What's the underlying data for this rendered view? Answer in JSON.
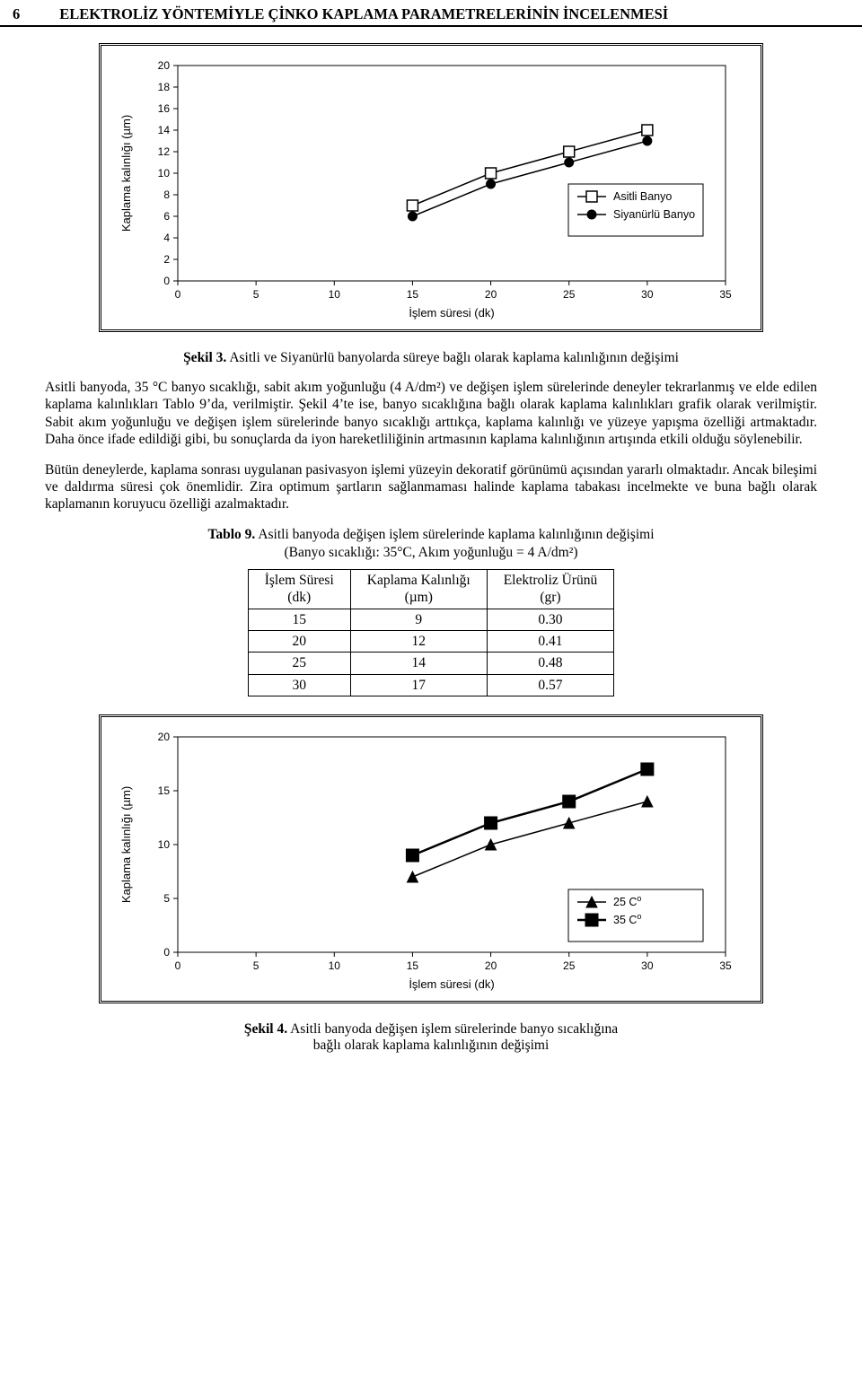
{
  "header": {
    "page_number": "6",
    "title": "ELEKTROLİZ YÖNTEMİYLE ÇİNKO KAPLAMA PARAMETRELERİNİN İNCELENMESİ"
  },
  "chart1": {
    "type": "line",
    "xlabel": "İşlem süresi (dk)",
    "ylabel": "Kaplama kalınlığı (µm)",
    "xlim": [
      0,
      35
    ],
    "xtick_step": 5,
    "ylim": [
      0,
      20
    ],
    "ytick_step": 2,
    "background_color": "#ffffff",
    "grid_color": "#000000",
    "axis_fontsize": 13,
    "tick_fontsize": 12,
    "series": [
      {
        "name": "Asitli Banyo",
        "marker": "square-open",
        "color": "#000000",
        "line_width": 1.5,
        "marker_size": 6,
        "x": [
          15,
          20,
          25,
          30
        ],
        "y": [
          7,
          10,
          12,
          14
        ]
      },
      {
        "name": "Siyanürlü Banyo",
        "marker": "circle",
        "color": "#000000",
        "line_width": 1.5,
        "marker_size": 5,
        "x": [
          15,
          20,
          25,
          30
        ],
        "y": [
          6,
          9,
          11,
          13
        ]
      }
    ],
    "legend": {
      "position": "inside-right-mid"
    }
  },
  "caption1_label": "Şekil 3.",
  "caption1_text": " Asitli ve Siyanürlü banyolarda süreye bağlı olarak kaplama kalınlığının değişimi",
  "para1": "Asitli banyoda, 35 °C banyo sıcaklığı, sabit akım yoğunluğu (4 A/dm²) ve değişen işlem sürelerinde deneyler tekrarlanmış ve elde edilen kaplama kalınlıkları Tablo 9’da, verilmiştir. Şekil 4’te ise, banyo sıcaklığına bağlı olarak kaplama kalınlıkları grafik olarak verilmiştir. Sabit akım yoğunluğu ve değişen işlem sürelerinde banyo sıcaklığı arttıkça, kaplama kalınlığı ve yüzeye yapışma özelliği artmaktadır. Daha önce ifade edildiği gibi, bu sonuçlarda da iyon hareketliliğinin artmasının kaplama kalınlığının artışında etkili olduğu söylenebilir.",
  "para2": "Bütün deneylerde, kaplama sonrası uygulanan pasivasyon işlemi yüzeyin dekoratif görünümü açısından yararlı olmaktadır. Ancak bileşimi ve daldırma süresi çok önemlidir. Zira optimum şartların sağlanmaması halinde kaplama tabakası incelmekte ve buna bağlı olarak kaplamanın koruyucu özelliği azalmaktadır.",
  "table9": {
    "caption_label": "Tablo 9.",
    "caption_line1": " Asitli banyoda değişen işlem sürelerinde kaplama kalınlığının değişimi",
    "caption_line2": "(Banyo sıcaklığı: 35°C, Akım yoğunluğu = 4 A/dm²)",
    "columns": [
      {
        "line1": "İşlem Süresi",
        "line2": "(dk)"
      },
      {
        "line1": "Kaplama Kalınlığı",
        "line2": "(µm)"
      },
      {
        "line1": "Elektroliz Ürünü",
        "line2": "(gr)"
      }
    ],
    "rows": [
      [
        "15",
        "9",
        "0.30"
      ],
      [
        "20",
        "12",
        "0.41"
      ],
      [
        "25",
        "14",
        "0.48"
      ],
      [
        "30",
        "17",
        "0.57"
      ]
    ]
  },
  "chart2": {
    "type": "line",
    "xlabel": "İşlem süresi (dk)",
    "ylabel": "Kaplama kalınlığı (µm)",
    "xlim": [
      0,
      35
    ],
    "xtick_step": 5,
    "ylim": [
      0,
      20
    ],
    "ytick_step": 5,
    "background_color": "#ffffff",
    "grid_color": "#000000",
    "axis_fontsize": 13,
    "tick_fontsize": 12,
    "series": [
      {
        "name": "25 C",
        "superscript": "o",
        "marker": "triangle",
        "color": "#000000",
        "line_width": 1.5,
        "marker_size": 6,
        "x": [
          15,
          20,
          25,
          30
        ],
        "y": [
          7,
          10,
          12,
          14
        ]
      },
      {
        "name": "35 C",
        "superscript": "o",
        "marker": "square",
        "color": "#000000",
        "line_width": 2.5,
        "marker_size": 7,
        "x": [
          15,
          20,
          25,
          30
        ],
        "y": [
          9,
          12,
          14,
          17
        ]
      }
    ],
    "legend": {
      "position": "inside-right-bottom"
    }
  },
  "caption2_label": "Şekil 4.",
  "caption2_line1": " Asitli banyoda değişen işlem sürelerinde banyo sıcaklığına",
  "caption2_line2": "bağlı olarak kaplama kalınlığının değişimi"
}
